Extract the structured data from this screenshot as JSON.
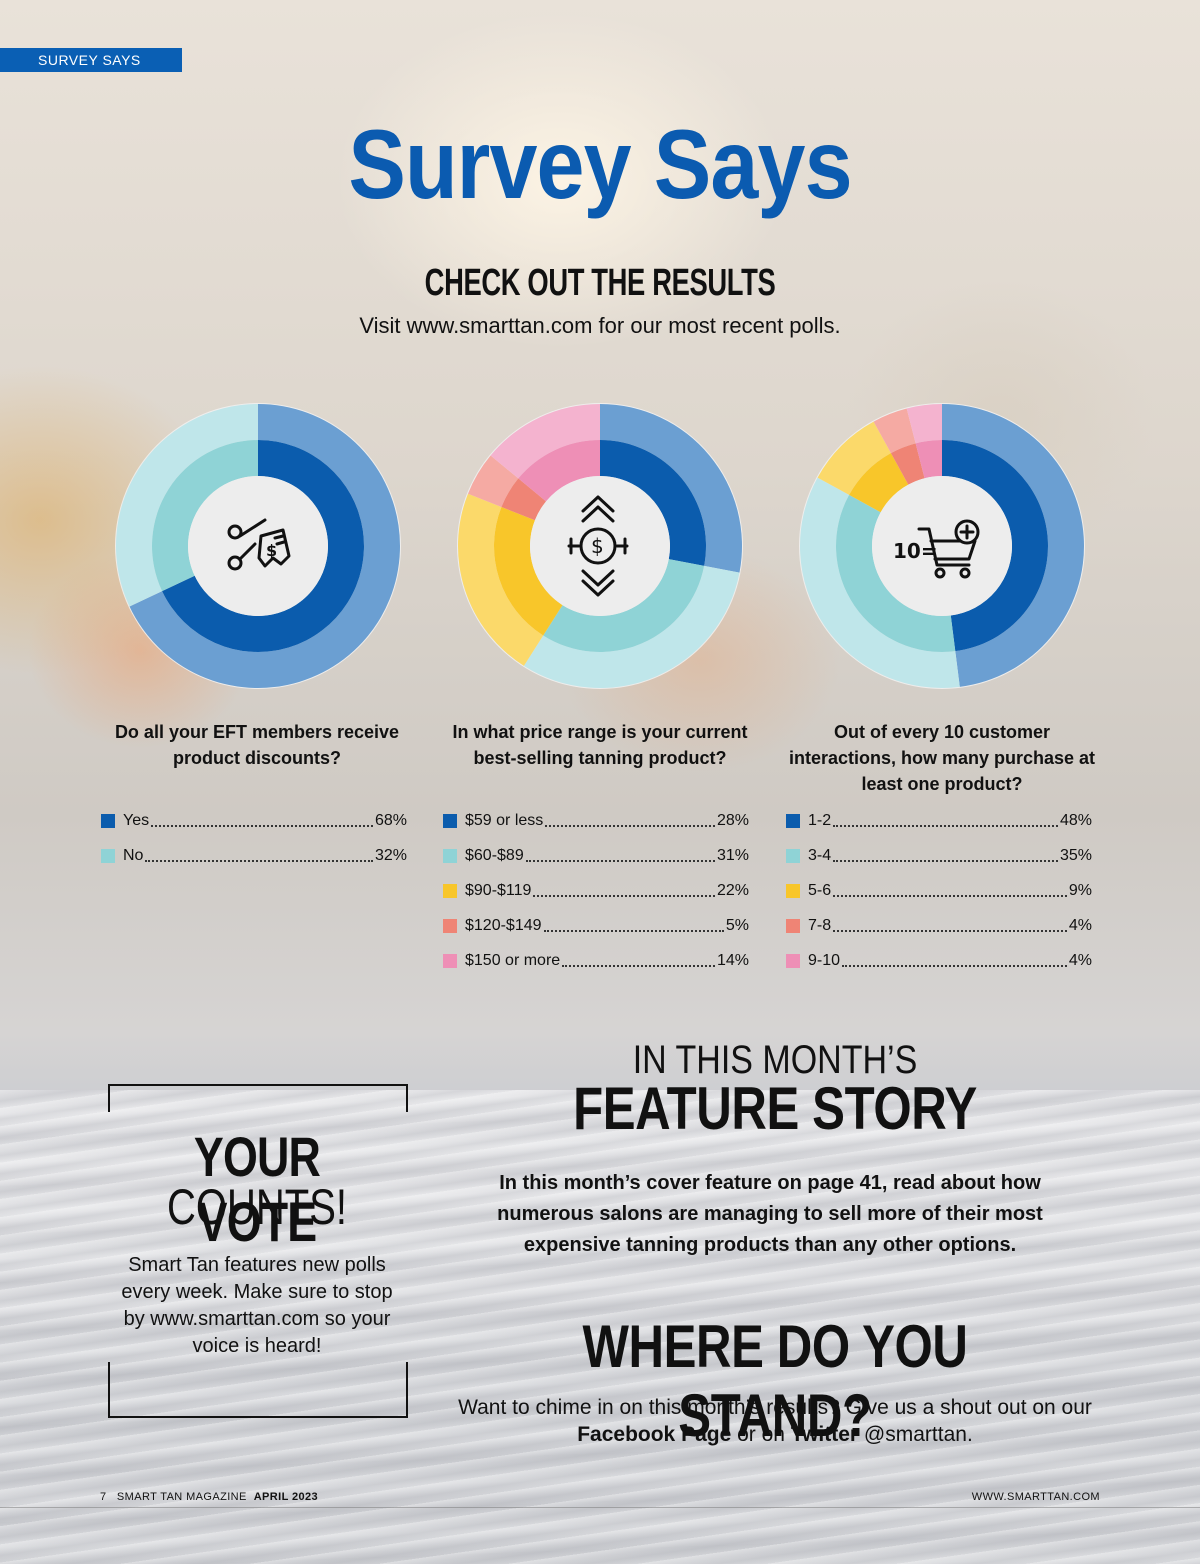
{
  "header": {
    "section_tab": "SURVEY SAYS"
  },
  "title": "Survey Says",
  "subtitle": "CHECK OUT THE RESULTS",
  "visit_text": "Visit www.smarttan.com for our most recent polls.",
  "colors": {
    "blue_dark": "#0b5cad",
    "blue_light": "#6b9fd2",
    "teal_dark": "#8fd3d6",
    "teal_light": "#bfe6ea",
    "yellow_dark": "#f8c62a",
    "yellow_light": "#fbd96a",
    "salmon_dark": "#ef8475",
    "salmon_light": "#f5aaa3",
    "pink_dark": "#ee8fb6",
    "pink_light": "#f4b3cf"
  },
  "chart_data": [
    {
      "type": "pie",
      "icon": "scissors-coupon-icon",
      "title": "Do all your EFT members receive product discounts?",
      "labels": [
        "Yes",
        "No"
      ],
      "label_texts": [
        "Yes",
        "No"
      ],
      "percent_texts": [
        "68%",
        "32%"
      ],
      "values": [
        68,
        32
      ],
      "colors": [
        "blue",
        "teal"
      ]
    },
    {
      "type": "pie",
      "icon": "price-range-icon",
      "title": "In what price range is your current best-selling tanning product?",
      "labels": [
        "$59 or less",
        "$60-$89",
        "$90-$119",
        "$120-$149",
        "$150 or more"
      ],
      "label_texts": [
        "$59 or less",
        "$60-$89",
        "$90-$119",
        "$120-$149",
        "$150 or more"
      ],
      "percent_texts": [
        "28%",
        "31%",
        "22%",
        "5%",
        "14%"
      ],
      "values": [
        28,
        31,
        22,
        5,
        14
      ],
      "colors": [
        "blue",
        "teal",
        "yellow",
        "salmon",
        "pink"
      ]
    },
    {
      "type": "pie",
      "icon": "shopping-cart-plus-icon",
      "icon_text": "10=",
      "title": "Out of every 10 customer interactions, how many purchase at least one product?",
      "labels": [
        "1-2",
        "3-4",
        "5-6",
        "7-8",
        "9-10"
      ],
      "label_texts": [
        "1-2",
        "3-4",
        "5-6",
        "7-8",
        "9-10"
      ],
      "percent_texts": [
        "48%",
        "35%",
        "9%",
        "4%",
        "4%"
      ],
      "values": [
        48,
        35,
        9,
        4,
        4
      ],
      "colors": [
        "blue",
        "teal",
        "yellow",
        "salmon",
        "pink"
      ]
    }
  ],
  "vote": {
    "line1": "YOUR VOTE",
    "line2": "COUNTS!",
    "text": "Smart Tan features new polls every week. Make sure to stop by www.smarttan.com so your voice is heard!"
  },
  "feature": {
    "line1": "IN THIS MONTH’S",
    "line2": "FEATURE STORY",
    "text": "In this month’s cover feature on page 41, read about how numerous salons are managing to sell more of their most expensive tanning products than any other options."
  },
  "stand": {
    "heading": "WHERE DO YOU STAND?",
    "text_before": "Want to chime in on this month’s results? Give us a shout out on our ",
    "facebook": "Facebook Page",
    "text_middle": " or on ",
    "twitter": "Twitter",
    "text_after": " @smarttan."
  },
  "footer": {
    "page_number": "7",
    "magazine": "SMART TAN MAGAZINE",
    "issue": "APRIL 2023",
    "website": "WWW.SMARTTAN.COM"
  }
}
